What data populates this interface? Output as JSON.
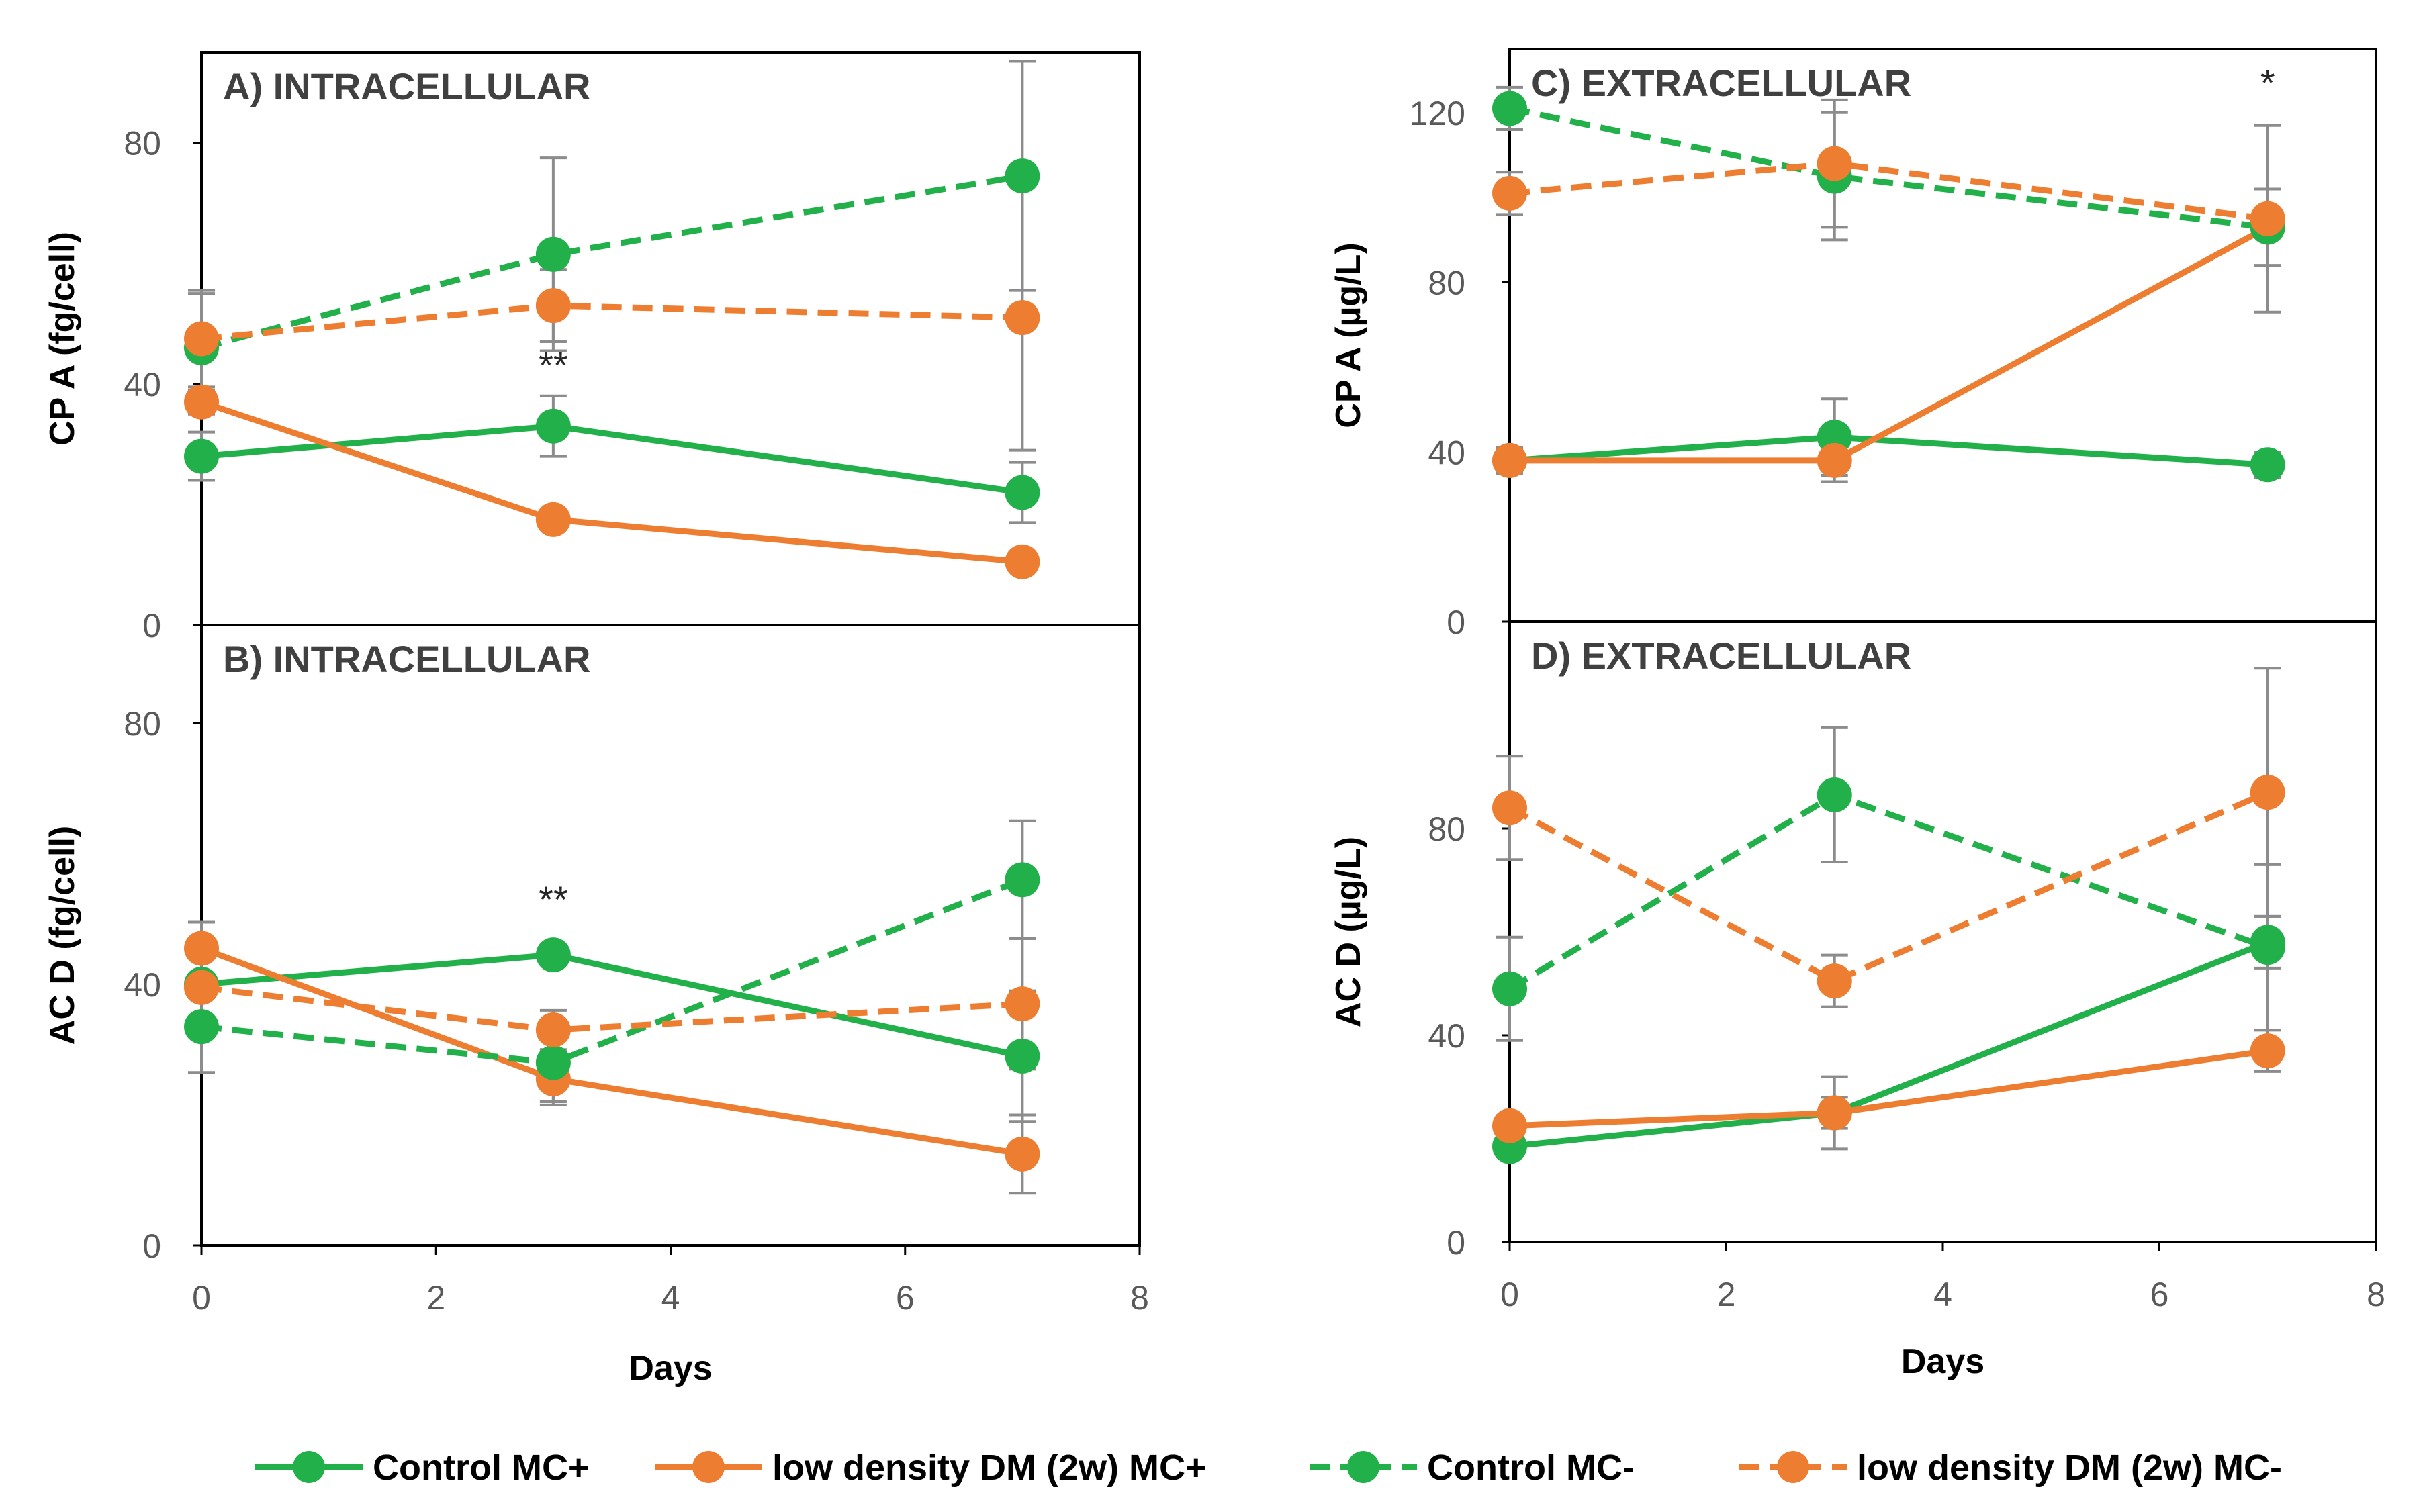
{
  "colors": {
    "green": "#22b04a",
    "orange": "#ed7d31",
    "errorbar": "#8c8c8c",
    "frame": "#000000",
    "ticktext": "#595959"
  },
  "legend": [
    {
      "label": "Control MC+",
      "color": "green",
      "dashed": false
    },
    {
      "label": "low density DM (2w) MC+",
      "color": "orange",
      "dashed": false
    },
    {
      "label": "Control MC-",
      "color": "green",
      "dashed": true
    },
    {
      "label": "low density DM (2w) MC-",
      "color": "orange",
      "dashed": true
    }
  ],
  "chart_data": [
    {
      "id": "A",
      "type": "line",
      "title": "A) INTRACELLULAR",
      "xlabel": "",
      "ylabel": "CP A  (fg/cell)",
      "x": [
        0,
        3,
        7
      ],
      "xlim": [
        0,
        8
      ],
      "ylim": [
        0,
        95
      ],
      "xticks": [],
      "yticks": [
        0,
        40,
        80
      ],
      "series": [
        {
          "name": "Control MC+",
          "values": [
            28,
            33,
            22
          ],
          "errors": [
            4,
            5,
            5
          ]
        },
        {
          "name": "low density DM (2w) MC+",
          "values": [
            37,
            17.5,
            10.5
          ],
          "errors": [
            2,
            1.5,
            1.5
          ]
        },
        {
          "name": "Control MC-",
          "values": [
            46,
            61.5,
            74.5
          ],
          "errors": [
            9,
            16,
            19
          ]
        },
        {
          "name": "low density DM (2w) MC-",
          "values": [
            47.5,
            53,
            51
          ],
          "errors": [
            8,
            6,
            22
          ]
        }
      ],
      "annotations": [
        {
          "text": "**",
          "x": 3,
          "y": 41
        }
      ]
    },
    {
      "id": "B",
      "type": "line",
      "title": "B) INTRACELLULAR",
      "xlabel": "Days",
      "ylabel": "AC D  (fg/cell)",
      "x": [
        0,
        3,
        7
      ],
      "xlim": [
        0,
        8
      ],
      "ylim": [
        0,
        95
      ],
      "xticks": [
        0,
        2,
        4,
        6,
        8
      ],
      "yticks": [
        0,
        40,
        80
      ],
      "series": [
        {
          "name": "Control MC+",
          "values": [
            40,
            44.5,
            29
          ],
          "errors": [
            5,
            1.5,
            10
          ]
        },
        {
          "name": "low density DM (2w) MC+",
          "values": [
            45.5,
            25.5,
            14
          ],
          "errors": [
            4,
            4,
            6
          ]
        },
        {
          "name": "Control MC-",
          "values": [
            33.5,
            28,
            56
          ],
          "errors": [
            7,
            6,
            9
          ]
        },
        {
          "name": "low density DM (2w) MC-",
          "values": [
            39.5,
            33,
            37
          ],
          "errors": [
            6,
            3,
            10
          ]
        }
      ],
      "annotations": [
        {
          "text": "**",
          "x": 3,
          "y": 51
        }
      ]
    },
    {
      "id": "C",
      "type": "line",
      "title": "C) EXTRACELLULAR",
      "xlabel": "",
      "ylabel": "CP A  (µg/L)",
      "x": [
        0,
        3,
        7
      ],
      "xlim": [
        0,
        8
      ],
      "ylim": [
        0,
        135
      ],
      "xticks": [],
      "yticks": [
        0,
        40,
        80,
        120
      ],
      "series": [
        {
          "name": "Control MC+",
          "values": [
            38,
            43.5,
            37
          ],
          "errors": [
            3,
            9,
            3
          ]
        },
        {
          "name": "low density DM (2w) MC+",
          "values": [
            38,
            38,
            93
          ],
          "errors": [
            3,
            5,
            9
          ]
        },
        {
          "name": "Control MC-",
          "values": [
            121,
            105,
            93
          ],
          "errors": [
            5,
            15,
            9
          ]
        },
        {
          "name": "low density DM (2w) MC-",
          "values": [
            101,
            108,
            95
          ],
          "errors": [
            5,
            15,
            22
          ]
        }
      ],
      "annotations": [
        {
          "text": "*",
          "x": 7,
          "y": 124
        }
      ]
    },
    {
      "id": "D",
      "type": "line",
      "title": "D) EXTRACELLULAR",
      "xlabel": "Days",
      "ylabel": "AC D  (µg/L)",
      "x": [
        0,
        3,
        7
      ],
      "xlim": [
        0,
        8
      ],
      "ylim": [
        0,
        120
      ],
      "xticks": [
        0,
        2,
        4,
        6,
        8
      ],
      "yticks": [
        0,
        40,
        80
      ],
      "series": [
        {
          "name": "Control MC+",
          "values": [
            18.5,
            25,
            58
          ],
          "errors": [
            2,
            7,
            5
          ]
        },
        {
          "name": "low density DM (2w) MC+",
          "values": [
            22.5,
            25,
            37
          ],
          "errors": [
            2,
            3,
            4
          ]
        },
        {
          "name": "Control MC-",
          "values": [
            49,
            86.5,
            57
          ],
          "errors": [
            10,
            13,
            16
          ]
        },
        {
          "name": "low density DM (2w) MC-",
          "values": [
            84,
            50.5,
            87
          ],
          "errors": [
            10,
            5,
            24
          ]
        }
      ],
      "annotations": []
    }
  ]
}
